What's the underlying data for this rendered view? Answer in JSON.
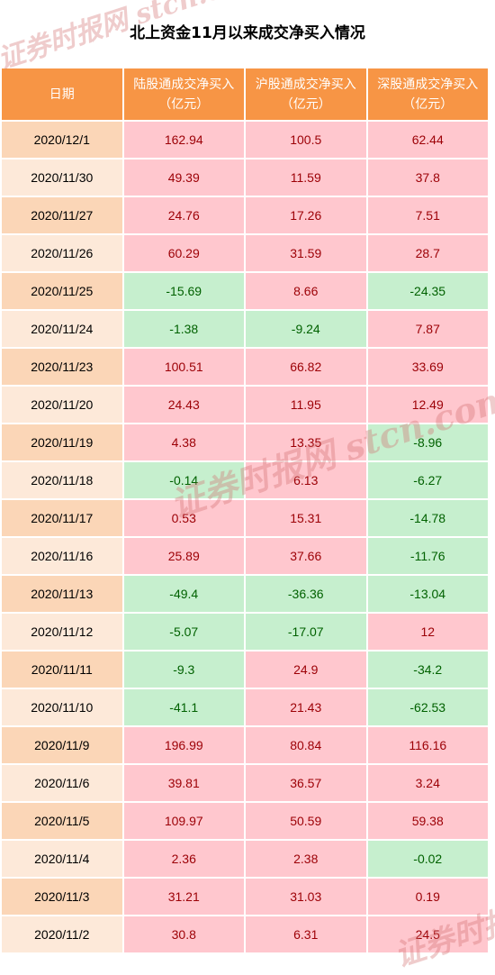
{
  "title": "北上资金11月以来成交净买入情况",
  "headers": {
    "date": "日期",
    "col1_line1": "陆股通成交净买入",
    "col1_line2": "（亿元）",
    "col2_line1": "沪股通成交净买入",
    "col2_line2": "（亿元）",
    "col3_line1": "深股通成交净买入",
    "col3_line2": "（亿元）"
  },
  "rows": [
    {
      "date": "2020/12/1",
      "lugutong": "162.94",
      "hugutong": "100.5",
      "shengutong": "62.44"
    },
    {
      "date": "2020/11/30",
      "lugutong": "49.39",
      "hugutong": "11.59",
      "shengutong": "37.8"
    },
    {
      "date": "2020/11/27",
      "lugutong": "24.76",
      "hugutong": "17.26",
      "shengutong": "7.51"
    },
    {
      "date": "2020/11/26",
      "lugutong": "60.29",
      "hugutong": "31.59",
      "shengutong": "28.7"
    },
    {
      "date": "2020/11/25",
      "lugutong": "-15.69",
      "hugutong": "8.66",
      "shengutong": "-24.35"
    },
    {
      "date": "2020/11/24",
      "lugutong": "-1.38",
      "hugutong": "-9.24",
      "shengutong": "7.87"
    },
    {
      "date": "2020/11/23",
      "lugutong": "100.51",
      "hugutong": "66.82",
      "shengutong": "33.69"
    },
    {
      "date": "2020/11/20",
      "lugutong": "24.43",
      "hugutong": "11.95",
      "shengutong": "12.49"
    },
    {
      "date": "2020/11/19",
      "lugutong": "4.38",
      "hugutong": "13.35",
      "shengutong": "-8.96"
    },
    {
      "date": "2020/11/18",
      "lugutong": "-0.14",
      "hugutong": "6.13",
      "shengutong": "-6.27"
    },
    {
      "date": "2020/11/17",
      "lugutong": "0.53",
      "hugutong": "15.31",
      "shengutong": "-14.78"
    },
    {
      "date": "2020/11/16",
      "lugutong": "25.89",
      "hugutong": "37.66",
      "shengutong": "-11.76"
    },
    {
      "date": "2020/11/13",
      "lugutong": "-49.4",
      "hugutong": "-36.36",
      "shengutong": "-13.04"
    },
    {
      "date": "2020/11/12",
      "lugutong": "-5.07",
      "hugutong": "-17.07",
      "shengutong": "12"
    },
    {
      "date": "2020/11/11",
      "lugutong": "-9.3",
      "hugutong": "24.9",
      "shengutong": "-34.2"
    },
    {
      "date": "2020/11/10",
      "lugutong": "-41.1",
      "hugutong": "21.43",
      "shengutong": "-62.53"
    },
    {
      "date": "2020/11/9",
      "lugutong": "196.99",
      "hugutong": "80.84",
      "shengutong": "116.16"
    },
    {
      "date": "2020/11/6",
      "lugutong": "39.81",
      "hugutong": "36.57",
      "shengutong": "3.24"
    },
    {
      "date": "2020/11/5",
      "lugutong": "109.97",
      "hugutong": "50.59",
      "shengutong": "59.38"
    },
    {
      "date": "2020/11/4",
      "lugutong": "2.36",
      "hugutong": "2.38",
      "shengutong": "-0.02"
    },
    {
      "date": "2020/11/3",
      "lugutong": "31.21",
      "hugutong": "31.03",
      "shengutong": "0.19"
    },
    {
      "date": "2020/11/2",
      "lugutong": "30.8",
      "hugutong": "6.31",
      "shengutong": "24.5"
    }
  ],
  "watermark": "证券时报网 stcn.com",
  "colors": {
    "header_bg": "#f79545",
    "date_bg_odd": "#fbd6b7",
    "date_bg_even": "#fde9d9",
    "positive_bg": "#ffc7ce",
    "positive_text": "#9c0006",
    "negative_bg": "#c6efce",
    "negative_text": "#006100"
  }
}
